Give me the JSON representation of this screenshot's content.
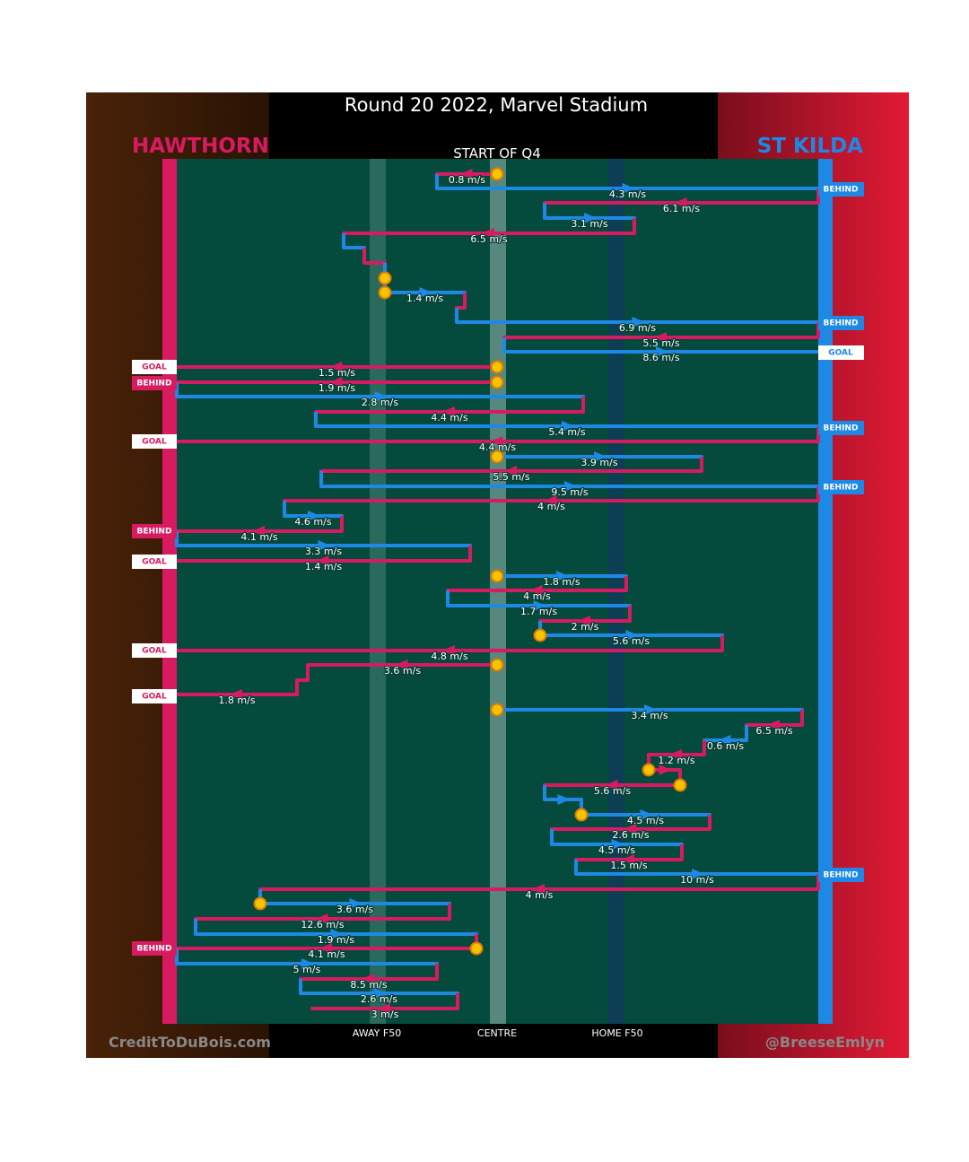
{
  "title": "Round 20 2022, Marvel Stadium",
  "teams": {
    "left": "HAWTHORN",
    "right": "ST KILDA"
  },
  "period": "START OF Q4",
  "speeds": [
    "0.8 m/s",
    "4.3 m/s",
    "6.1 m/s",
    "3.1 m/s",
    "6.5 m/s",
    "1.4 m/s",
    "6.9 m/s",
    "5.5 m/s",
    "8.6 m/s",
    "1.5 m/s",
    "1.9 m/s",
    "2.8 m/s",
    "4.4 m/s",
    "5.4 m/s",
    "4.4 m/s",
    "3.9 m/s",
    "5.5 m/s",
    "9.5 m/s",
    "4 m/s",
    "4.6 m/s",
    "4.1 m/s",
    "3.3 m/s",
    "1.4 m/s",
    "1.8 m/s",
    "4 m/s",
    "1.7 m/s",
    "2 m/s",
    "5.6 m/s",
    "4.8 m/s",
    "3.6 m/s",
    "1.8 m/s",
    "3.4 m/s",
    "6.5 m/s",
    "0.6 m/s",
    "1.2 m/s",
    "5.6 m/s",
    "4.5 m/s",
    "2.6 m/s",
    "4.5 m/s",
    "1.5 m/s",
    "10 m/s",
    "4 m/s",
    "3.6 m/s",
    "12.6 m/s",
    "1.9 m/s",
    "4.1 m/s",
    "5 m/s",
    "8.5 m/s",
    "2.6 m/s",
    "3 m/s"
  ],
  "outcomes_left": [
    "GOAL",
    "BEHIND",
    "GOAL",
    "BEHIND",
    "GOAL",
    "GOAL",
    "GOAL",
    "BEHIND"
  ],
  "outcomes_right": [
    "BEHIND",
    "BEHIND",
    "GOAL",
    "BEHIND",
    "BEHIND",
    "BEHIND"
  ],
  "zones": [
    "AWAY F50",
    "CENTRE",
    "HOME F50"
  ],
  "credits": {
    "left": "CreditToDuBois.com",
    "right": "@BreeseEmlyn"
  }
}
